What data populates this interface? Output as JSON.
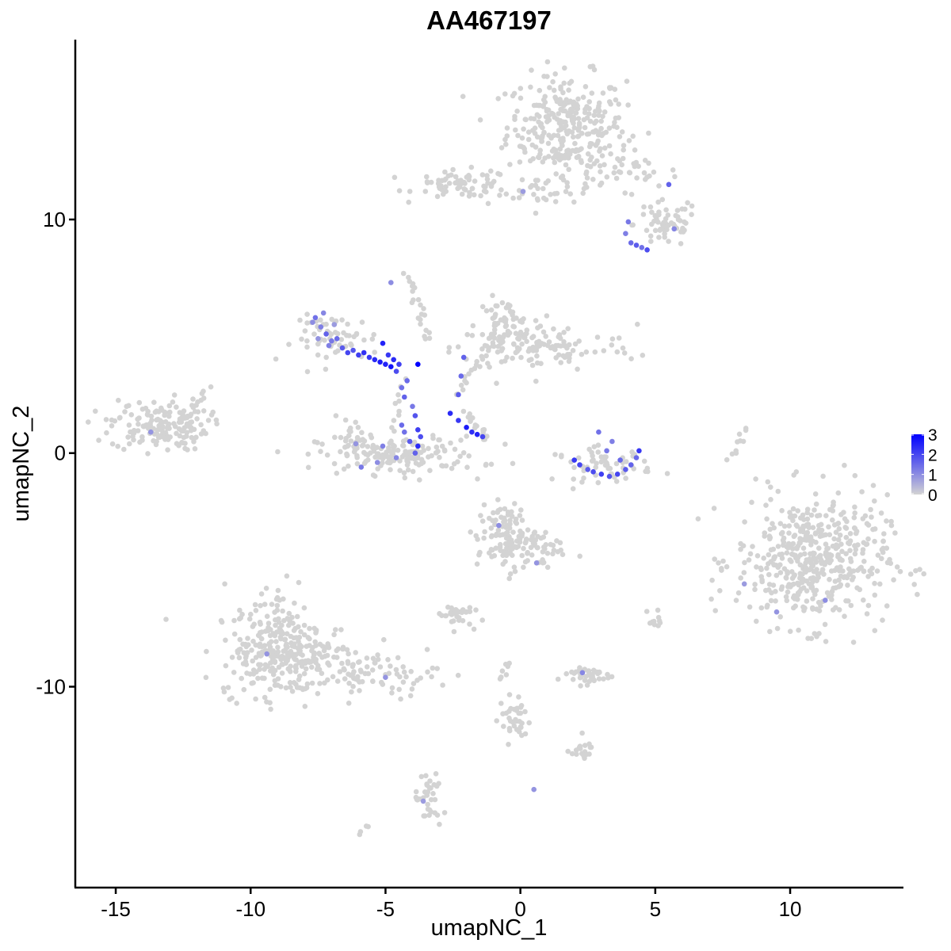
{
  "chart_data": {
    "type": "scatter",
    "title": "AA467197",
    "xlabel": "umapNC_1",
    "ylabel": "umapNC_2",
    "xlim": [
      -16.5,
      14.2
    ],
    "ylim": [
      -18.6,
      17.7
    ],
    "xticks": [
      -15,
      -10,
      -5,
      0,
      5,
      10
    ],
    "xtick_labels": [
      "-15",
      "-10",
      "-5",
      "0",
      "5",
      "10"
    ],
    "yticks": [
      -10,
      0,
      10
    ],
    "ytick_labels": [
      "-10",
      "0",
      "10"
    ],
    "color_scale": {
      "low": "#d3d3d3",
      "high": "#0000ff",
      "min": 0,
      "max": 3
    },
    "legend": {
      "position": "right",
      "ticks": [
        0,
        1,
        2,
        3
      ],
      "tick_labels": [
        "0",
        "1",
        "2",
        "3"
      ]
    },
    "grid": false,
    "clusters": [
      {
        "cx": 1.7,
        "cy": 14.0,
        "sx": 1.1,
        "sy": 1.1,
        "n": 300
      },
      {
        "cx": 3.5,
        "cy": 12.0,
        "sx": 1.2,
        "sy": 0.5,
        "n": 45
      },
      {
        "cx": 5.4,
        "cy": 9.8,
        "sx": 0.6,
        "sy": 0.5,
        "n": 60
      },
      {
        "cx": -2.1,
        "cy": 11.5,
        "sx": 0.9,
        "sy": 0.3,
        "n": 70
      },
      {
        "cx": 0.8,
        "cy": 11.2,
        "sx": 1.2,
        "sy": 0.25,
        "n": 25
      },
      {
        "cx": -0.6,
        "cy": 5.4,
        "sx": 0.5,
        "sy": 0.6,
        "n": 70
      },
      {
        "cx": 0.9,
        "cy": 4.5,
        "sx": 1.7,
        "sy": 0.5,
        "n": 110
      },
      {
        "cx": -13.4,
        "cy": 1.2,
        "sx": 0.9,
        "sy": 0.55,
        "n": 160
      },
      {
        "cx": -4.5,
        "cy": -0.1,
        "sx": 1.5,
        "sy": 0.4,
        "n": 150
      },
      {
        "cx": -6.2,
        "cy": 0.7,
        "sx": 0.4,
        "sy": 0.4,
        "n": 25
      },
      {
        "cx": -6.8,
        "cy": 4.9,
        "sx": 0.8,
        "sy": 0.5,
        "n": 60
      },
      {
        "cx": 3.1,
        "cy": -0.5,
        "sx": 0.9,
        "sy": 0.35,
        "n": 60
      },
      {
        "cx": 10.8,
        "cy": -4.6,
        "sx": 1.4,
        "sy": 1.4,
        "n": 480
      },
      {
        "cx": -9.0,
        "cy": -7.8,
        "sx": 0.8,
        "sy": 1.2,
        "n": 140
      },
      {
        "cx": -8.4,
        "cy": -8.8,
        "sx": 1.4,
        "sy": 0.8,
        "n": 200
      },
      {
        "cx": -5.2,
        "cy": -9.5,
        "sx": 1.1,
        "sy": 0.4,
        "n": 60
      },
      {
        "cx": -0.5,
        "cy": -3.6,
        "sx": 0.55,
        "sy": 0.7,
        "n": 120
      },
      {
        "cx": 0.8,
        "cy": -4.2,
        "sx": 0.5,
        "sy": 0.5,
        "n": 30
      },
      {
        "cx": -2.4,
        "cy": -6.9,
        "sx": 0.3,
        "sy": 0.25,
        "n": 35
      },
      {
        "cx": 2.4,
        "cy": -9.5,
        "sx": 0.5,
        "sy": 0.2,
        "n": 40
      },
      {
        "cx": -0.2,
        "cy": -11.4,
        "sx": 0.3,
        "sy": 0.5,
        "n": 35
      },
      {
        "cx": 2.2,
        "cy": -12.7,
        "sx": 0.25,
        "sy": 0.2,
        "n": 20
      },
      {
        "cx": -3.4,
        "cy": -14.9,
        "sx": 0.25,
        "sy": 0.6,
        "n": 35
      },
      {
        "cx": 5.0,
        "cy": -7.2,
        "sx": 0.15,
        "sy": 0.2,
        "n": 10
      }
    ],
    "trails": [
      {
        "x0": -4.2,
        "y0": 7.7,
        "x1": -3.4,
        "y1": 4.8,
        "n": 22
      },
      {
        "x0": -2.0,
        "y0": 1.7,
        "x1": -1.2,
        "y1": 0.6,
        "n": 16
      },
      {
        "x0": -2.4,
        "y0": 2.5,
        "x1": -1.0,
        "y1": 5.0,
        "n": 20
      },
      {
        "x0": 8.3,
        "y0": 1.1,
        "x1": 7.8,
        "y1": -0.3,
        "n": 10
      },
      {
        "x0": -5.0,
        "y0": -0.5,
        "x1": -4.3,
        "y1": 3.0,
        "n": 16
      },
      {
        "x0": -12.6,
        "y0": 0.9,
        "x1": -11.6,
        "y1": 2.8,
        "n": 14
      },
      {
        "x0": -6.0,
        "y0": -16.3,
        "x1": -5.7,
        "y1": -16.0,
        "n": 4
      },
      {
        "x0": -0.7,
        "y0": -9.7,
        "x1": -0.4,
        "y1": -8.9,
        "n": 8
      }
    ],
    "expressing": [
      {
        "x": -7.6,
        "y": 5.8,
        "value": 1.4
      },
      {
        "x": -7.4,
        "y": 5.4,
        "value": 1.2
      },
      {
        "x": -7.2,
        "y": 5.1,
        "value": 1.6
      },
      {
        "x": -7.0,
        "y": 4.8,
        "value": 1.3
      },
      {
        "x": -7.3,
        "y": 6.0,
        "value": 1.1
      },
      {
        "x": -6.8,
        "y": 4.9,
        "value": 1.5
      },
      {
        "x": -6.6,
        "y": 4.5,
        "value": 1.7
      },
      {
        "x": -6.4,
        "y": 4.3,
        "value": 2.0
      },
      {
        "x": -6.2,
        "y": 4.4,
        "value": 1.8
      },
      {
        "x": -6.0,
        "y": 4.2,
        "value": 2.1
      },
      {
        "x": -5.8,
        "y": 4.3,
        "value": 2.3
      },
      {
        "x": -5.6,
        "y": 4.1,
        "value": 2.2
      },
      {
        "x": -5.4,
        "y": 4.0,
        "value": 2.4
      },
      {
        "x": -5.2,
        "y": 3.9,
        "value": 2.6
      },
      {
        "x": -5.0,
        "y": 3.8,
        "value": 2.5
      },
      {
        "x": -4.8,
        "y": 3.7,
        "value": 2.7
      },
      {
        "x": -4.9,
        "y": 4.2,
        "value": 2.2
      },
      {
        "x": -5.1,
        "y": 4.7,
        "value": 2.5
      },
      {
        "x": -4.7,
        "y": 4.0,
        "value": 2.4
      },
      {
        "x": -4.5,
        "y": 3.8,
        "value": 2.1
      },
      {
        "x": -4.6,
        "y": 3.5,
        "value": 1.9
      },
      {
        "x": -3.8,
        "y": 3.8,
        "value": 3.0
      },
      {
        "x": -7.7,
        "y": 5.6,
        "value": 1.0
      },
      {
        "x": -7.5,
        "y": 4.9,
        "value": 0.9
      },
      {
        "x": -7.1,
        "y": 4.6,
        "value": 1.2
      },
      {
        "x": -6.9,
        "y": 5.5,
        "value": 0.8
      },
      {
        "x": -4.2,
        "y": 3.1,
        "value": 1.5
      },
      {
        "x": -4.0,
        "y": 2.0,
        "value": 1.3
      },
      {
        "x": -3.9,
        "y": 1.6,
        "value": 1.8
      },
      {
        "x": -3.8,
        "y": 1.0,
        "value": 2.1
      },
      {
        "x": -3.7,
        "y": 0.7,
        "value": 1.9
      },
      {
        "x": -3.8,
        "y": 0.3,
        "value": 2.4
      },
      {
        "x": -3.9,
        "y": 0.0,
        "value": 1.6
      },
      {
        "x": -4.1,
        "y": 0.5,
        "value": 1.7
      },
      {
        "x": -4.3,
        "y": 0.9,
        "value": 1.4
      },
      {
        "x": -4.4,
        "y": 1.2,
        "value": 1.5
      },
      {
        "x": -4.6,
        "y": -0.2,
        "value": 1.1
      },
      {
        "x": -5.1,
        "y": 0.3,
        "value": 1.2
      },
      {
        "x": -5.3,
        "y": -0.4,
        "value": 1.0
      },
      {
        "x": -5.9,
        "y": -0.6,
        "value": 1.3
      },
      {
        "x": -6.1,
        "y": 0.4,
        "value": 0.9
      },
      {
        "x": -4.3,
        "y": 2.4,
        "value": 1.6
      },
      {
        "x": -4.4,
        "y": 2.8,
        "value": 1.4
      },
      {
        "x": -2.6,
        "y": 1.7,
        "value": 2.4
      },
      {
        "x": -2.3,
        "y": 1.4,
        "value": 2.2
      },
      {
        "x": -2.0,
        "y": 1.1,
        "value": 2.6
      },
      {
        "x": -1.8,
        "y": 0.9,
        "value": 2.3
      },
      {
        "x": -1.6,
        "y": 0.8,
        "value": 2.5
      },
      {
        "x": -1.4,
        "y": 0.7,
        "value": 2.0
      },
      {
        "x": -2.3,
        "y": 2.5,
        "value": 1.7
      },
      {
        "x": -2.2,
        "y": 3.3,
        "value": 1.5
      },
      {
        "x": -2.1,
        "y": 4.1,
        "value": 1.6
      },
      {
        "x": 2.0,
        "y": -0.3,
        "value": 2.2
      },
      {
        "x": 2.2,
        "y": -0.5,
        "value": 2.0
      },
      {
        "x": 2.5,
        "y": -0.7,
        "value": 1.7
      },
      {
        "x": 2.7,
        "y": -0.8,
        "value": 1.9
      },
      {
        "x": 3.0,
        "y": -0.9,
        "value": 2.1
      },
      {
        "x": 3.3,
        "y": -1.0,
        "value": 1.8
      },
      {
        "x": 3.6,
        "y": -0.9,
        "value": 2.0
      },
      {
        "x": 3.9,
        "y": -0.7,
        "value": 1.7
      },
      {
        "x": 4.1,
        "y": -0.5,
        "value": 1.6
      },
      {
        "x": 4.3,
        "y": -0.2,
        "value": 1.5
      },
      {
        "x": 4.4,
        "y": 0.1,
        "value": 2.2
      },
      {
        "x": 3.2,
        "y": 0.1,
        "value": 1.3
      },
      {
        "x": 3.4,
        "y": 0.5,
        "value": 1.2
      },
      {
        "x": 2.9,
        "y": 0.9,
        "value": 1.4
      },
      {
        "x": 3.7,
        "y": -0.3,
        "value": 1.5
      },
      {
        "x": 3.9,
        "y": 9.4,
        "value": 1.2
      },
      {
        "x": 4.1,
        "y": 9.0,
        "value": 1.5
      },
      {
        "x": 4.3,
        "y": 8.9,
        "value": 1.7
      },
      {
        "x": 4.5,
        "y": 8.8,
        "value": 1.4
      },
      {
        "x": 4.7,
        "y": 8.7,
        "value": 1.9
      },
      {
        "x": 4.0,
        "y": 9.9,
        "value": 1.3
      },
      {
        "x": 5.5,
        "y": 11.5,
        "value": 1.6
      },
      {
        "x": 5.7,
        "y": 9.6,
        "value": 1.1
      },
      {
        "x": -4.8,
        "y": 7.3,
        "value": 1.0
      },
      {
        "x": -13.7,
        "y": 0.9,
        "value": 0.9
      },
      {
        "x": -0.8,
        "y": -3.1,
        "value": 1.0
      },
      {
        "x": 0.6,
        "y": -4.7,
        "value": 0.9
      },
      {
        "x": 2.3,
        "y": -9.4,
        "value": 1.1
      },
      {
        "x": -5.0,
        "y": -9.6,
        "value": 0.9
      },
      {
        "x": -9.4,
        "y": -8.6,
        "value": 0.9
      },
      {
        "x": -3.6,
        "y": -14.9,
        "value": 0.8
      },
      {
        "x": 11.3,
        "y": -6.3,
        "value": 1.0
      },
      {
        "x": 9.5,
        "y": -6.8,
        "value": 0.9
      },
      {
        "x": 0.5,
        "y": -14.4,
        "value": 0.9
      },
      {
        "x": 0.1,
        "y": 11.2,
        "value": 0.8
      },
      {
        "x": 8.3,
        "y": -5.6,
        "value": 0.8
      }
    ]
  }
}
